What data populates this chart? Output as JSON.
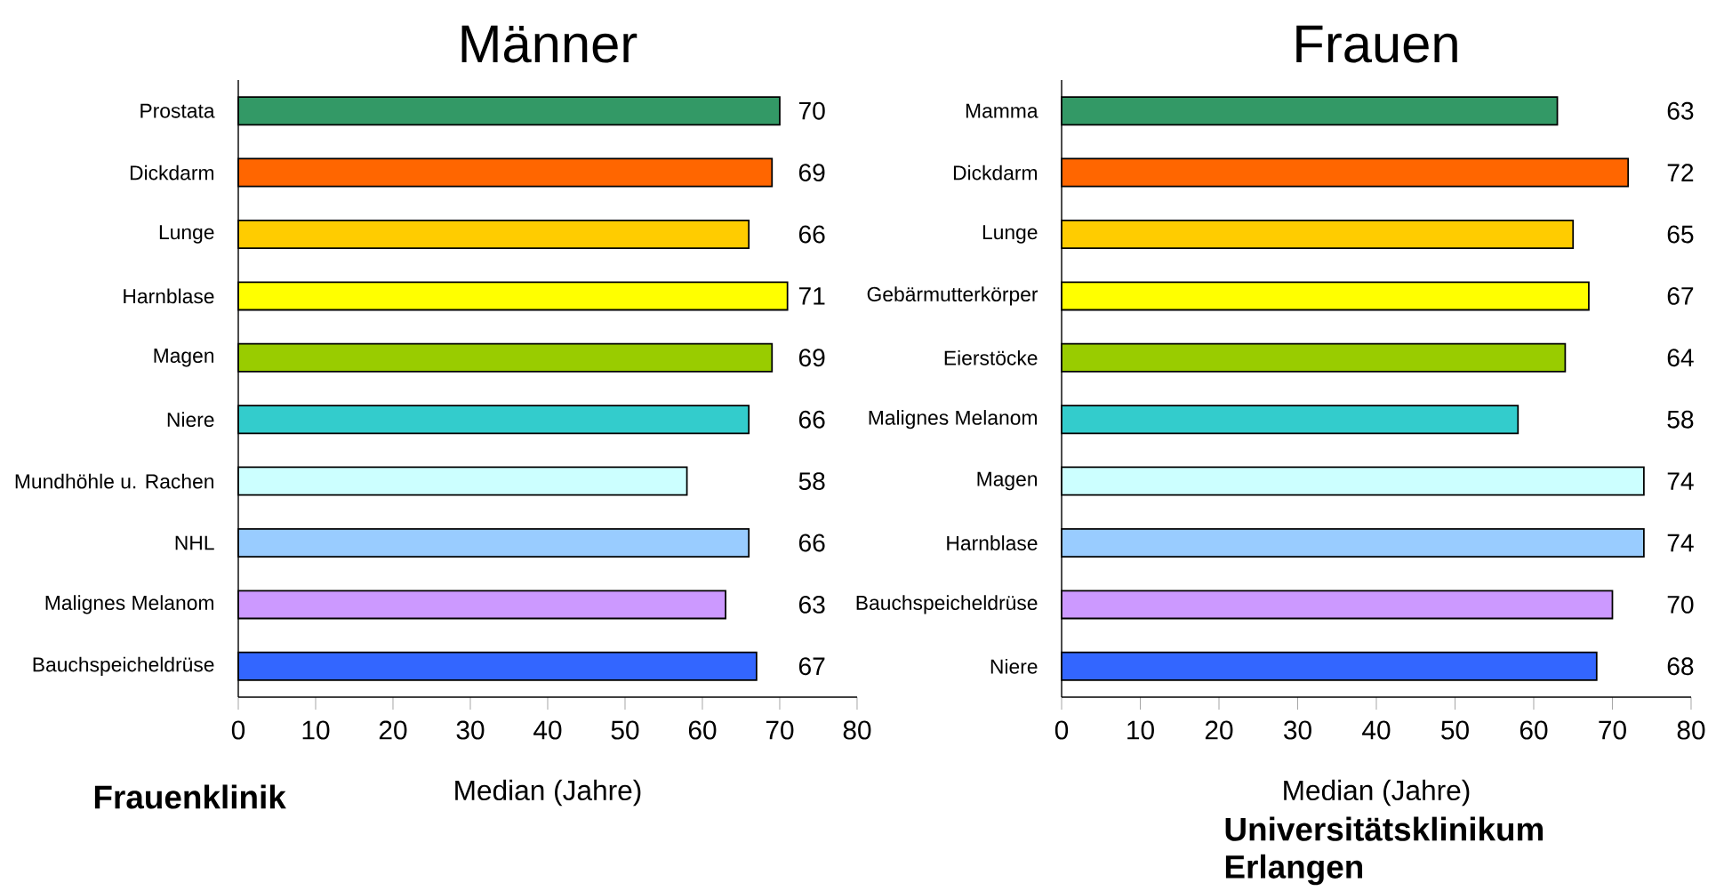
{
  "chart_data": [
    {
      "type": "bar",
      "orientation": "horizontal",
      "title": "Männer",
      "xlabel": "Median (Jahre)",
      "categories": [
        "Prostata",
        "Dickdarm",
        "Lunge",
        "Harnblase",
        "Magen",
        "Niere",
        "Mundhöhle u. Rachen",
        "NHL",
        "Malignes Melanom",
        "Bauchspeicheldrüse"
      ],
      "values": [
        70,
        69,
        66,
        71,
        69,
        66,
        58,
        66,
        63,
        67
      ],
      "colors": [
        "#339966",
        "#ff6600",
        "#ffcc00",
        "#ffff00",
        "#99cc00",
        "#33cccc",
        "#ccffff",
        "#99ccff",
        "#cc99ff",
        "#3366ff"
      ],
      "xlim": [
        0,
        80
      ],
      "xticks": [
        0,
        10,
        20,
        30,
        40,
        50,
        60,
        70,
        80
      ],
      "data_labels": true,
      "annotations": [
        "Frauenklinik"
      ]
    },
    {
      "type": "bar",
      "orientation": "horizontal",
      "title": "Frauen",
      "xlabel": "Median (Jahre)",
      "categories": [
        "Mamma",
        "Dickdarm",
        "Lunge",
        "Gebärmutterkörper",
        "Eierstöcke",
        "Malignes Melanom",
        "Magen",
        "Harnblase",
        "Bauchspeicheldrüse",
        "Niere"
      ],
      "values": [
        63,
        72,
        65,
        67,
        64,
        58,
        74,
        74,
        70,
        68
      ],
      "colors": [
        "#339966",
        "#ff6600",
        "#ffcc00",
        "#ffff00",
        "#99cc00",
        "#33cccc",
        "#ccffff",
        "#99ccff",
        "#cc99ff",
        "#3366ff"
      ],
      "xlim": [
        0,
        80
      ],
      "xticks": [
        0,
        10,
        20,
        30,
        40,
        50,
        60,
        70,
        80
      ],
      "data_labels": true,
      "annotations": [
        "Universitätsklinikum Erlangen"
      ]
    }
  ]
}
